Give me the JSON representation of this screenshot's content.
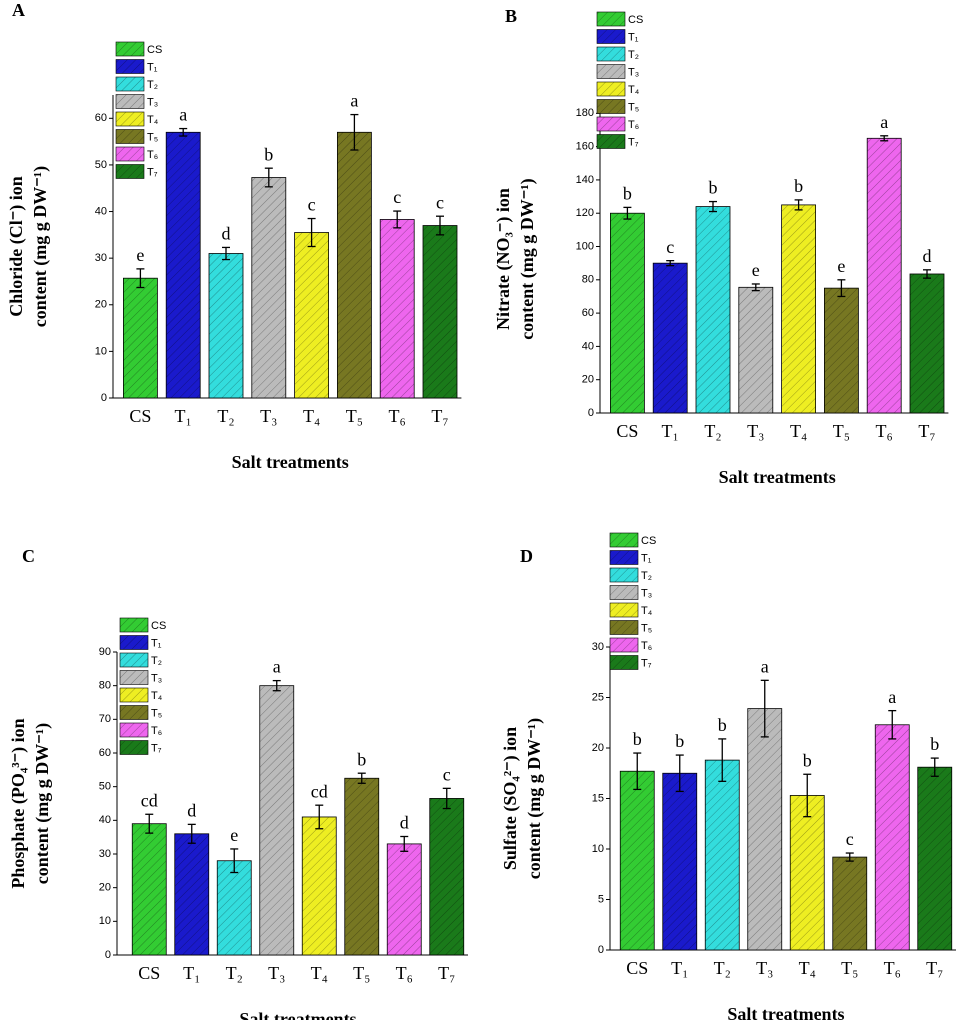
{
  "chart_data": [
    {
      "type": "bar",
      "panel_label": "A",
      "xlabel": "Salt treatments",
      "ylabel": [
        "Chloride (Cl⁻)  ion",
        "content (mg g DW⁻¹)"
      ],
      "categories": [
        "CS",
        "T₁",
        "T₂",
        "T₃",
        "T₄",
        "T₅",
        "T₆",
        "T₇"
      ],
      "legend": [
        "CS",
        "T₁",
        "T₂",
        "T₃",
        "T₄",
        "T₅",
        "T₆",
        "T₇"
      ],
      "colors": [
        "#33cc33",
        "#1a1acc",
        "#33dddd",
        "#bbbbbb",
        "#eeee22",
        "#777722",
        "#ee66ee",
        "#1a7a1a"
      ],
      "values": [
        25.7,
        57,
        31,
        47.3,
        35.5,
        57,
        38.3,
        37
      ],
      "errors": [
        2,
        0.8,
        1.3,
        2,
        3,
        3.8,
        1.8,
        2
      ],
      "annotations": [
        "e",
        "a",
        "d",
        "b",
        "c",
        "a",
        "c",
        "c"
      ],
      "ylim": [
        0,
        65
      ],
      "yticks": [
        0,
        10,
        20,
        30,
        40,
        50,
        60
      ]
    },
    {
      "type": "bar",
      "panel_label": "B",
      "xlabel": "Salt treatments",
      "ylabel": [
        "Nitrate (NO₃⁻)  ion",
        "content (mg g DW⁻¹)"
      ],
      "categories": [
        "CS",
        "T₁",
        "T₂",
        "T₃",
        "T₄",
        "T₅",
        "T₆",
        "T₇"
      ],
      "legend": [
        "CS",
        "T₁",
        "T₂",
        "T₃",
        "T₄",
        "T₅",
        "T₆",
        "T₇"
      ],
      "colors": [
        "#33cc33",
        "#1a1acc",
        "#33dddd",
        "#bbbbbb",
        "#eeee22",
        "#777722",
        "#ee66ee",
        "#1a7a1a"
      ],
      "values": [
        120,
        90,
        124,
        75.5,
        125,
        75,
        165,
        83.5
      ],
      "errors": [
        3.5,
        1.5,
        3,
        2,
        3,
        5,
        1.5,
        2.5
      ],
      "annotations": [
        "b",
        "c",
        "b",
        "e",
        "b",
        "e",
        "a",
        "d"
      ],
      "ylim": [
        0,
        185
      ],
      "yticks": [
        0,
        20,
        40,
        60,
        80,
        100,
        120,
        140,
        160,
        180
      ]
    },
    {
      "type": "bar",
      "panel_label": "C",
      "xlabel": "Salt treatments",
      "ylabel": [
        "Phosphate (PO₄³⁻)  ion",
        "content (mg g DW⁻¹)"
      ],
      "categories": [
        "CS",
        "T₁",
        "T₂",
        "T₃",
        "T₄",
        "T₅",
        "T₆",
        "T₇"
      ],
      "legend": [
        "CS",
        "T₁",
        "T₂",
        "T₃",
        "T₄",
        "T₅",
        "T₆",
        "T₇"
      ],
      "colors": [
        "#33cc33",
        "#1a1acc",
        "#33dddd",
        "#bbbbbb",
        "#eeee22",
        "#777722",
        "#ee66ee",
        "#1a7a1a"
      ],
      "values": [
        39,
        36,
        28,
        80,
        41,
        52.5,
        33,
        46.5
      ],
      "errors": [
        2.8,
        2.8,
        3.5,
        1.5,
        3.5,
        1.5,
        2.2,
        3
      ],
      "annotations": [
        "cd",
        "d",
        "e",
        "a",
        "cd",
        "b",
        "d",
        "c"
      ],
      "ylim": [
        0,
        90
      ],
      "yticks": [
        0,
        10,
        20,
        30,
        40,
        50,
        60,
        70,
        80,
        90
      ]
    },
    {
      "type": "bar",
      "panel_label": "D",
      "xlabel": "Salt treatments",
      "ylabel": [
        "Sulfate (SO₄²⁻)  ion",
        "content (mg g DW⁻¹)"
      ],
      "categories": [
        "CS",
        "T₁",
        "T₂",
        "T₃",
        "T₄",
        "T₅",
        "T₆",
        "T₇"
      ],
      "legend": [
        "CS",
        "T₁",
        "T₂",
        "T₃",
        "T₄",
        "T₅",
        "T₆",
        "T₇"
      ],
      "colors": [
        "#33cc33",
        "#1a1acc",
        "#33dddd",
        "#bbbbbb",
        "#eeee22",
        "#777722",
        "#ee66ee",
        "#1a7a1a"
      ],
      "values": [
        17.7,
        17.5,
        18.8,
        23.9,
        15.3,
        9.2,
        22.3,
        18.1
      ],
      "errors": [
        1.8,
        1.8,
        2.1,
        2.8,
        2.1,
        0.4,
        1.4,
        0.9
      ],
      "annotations": [
        "b",
        "b",
        "b",
        "a",
        "b",
        "c",
        "a",
        "b"
      ],
      "ylim": [
        0,
        30
      ],
      "yticks": [
        0,
        5,
        10,
        15,
        20,
        25,
        30
      ]
    }
  ]
}
